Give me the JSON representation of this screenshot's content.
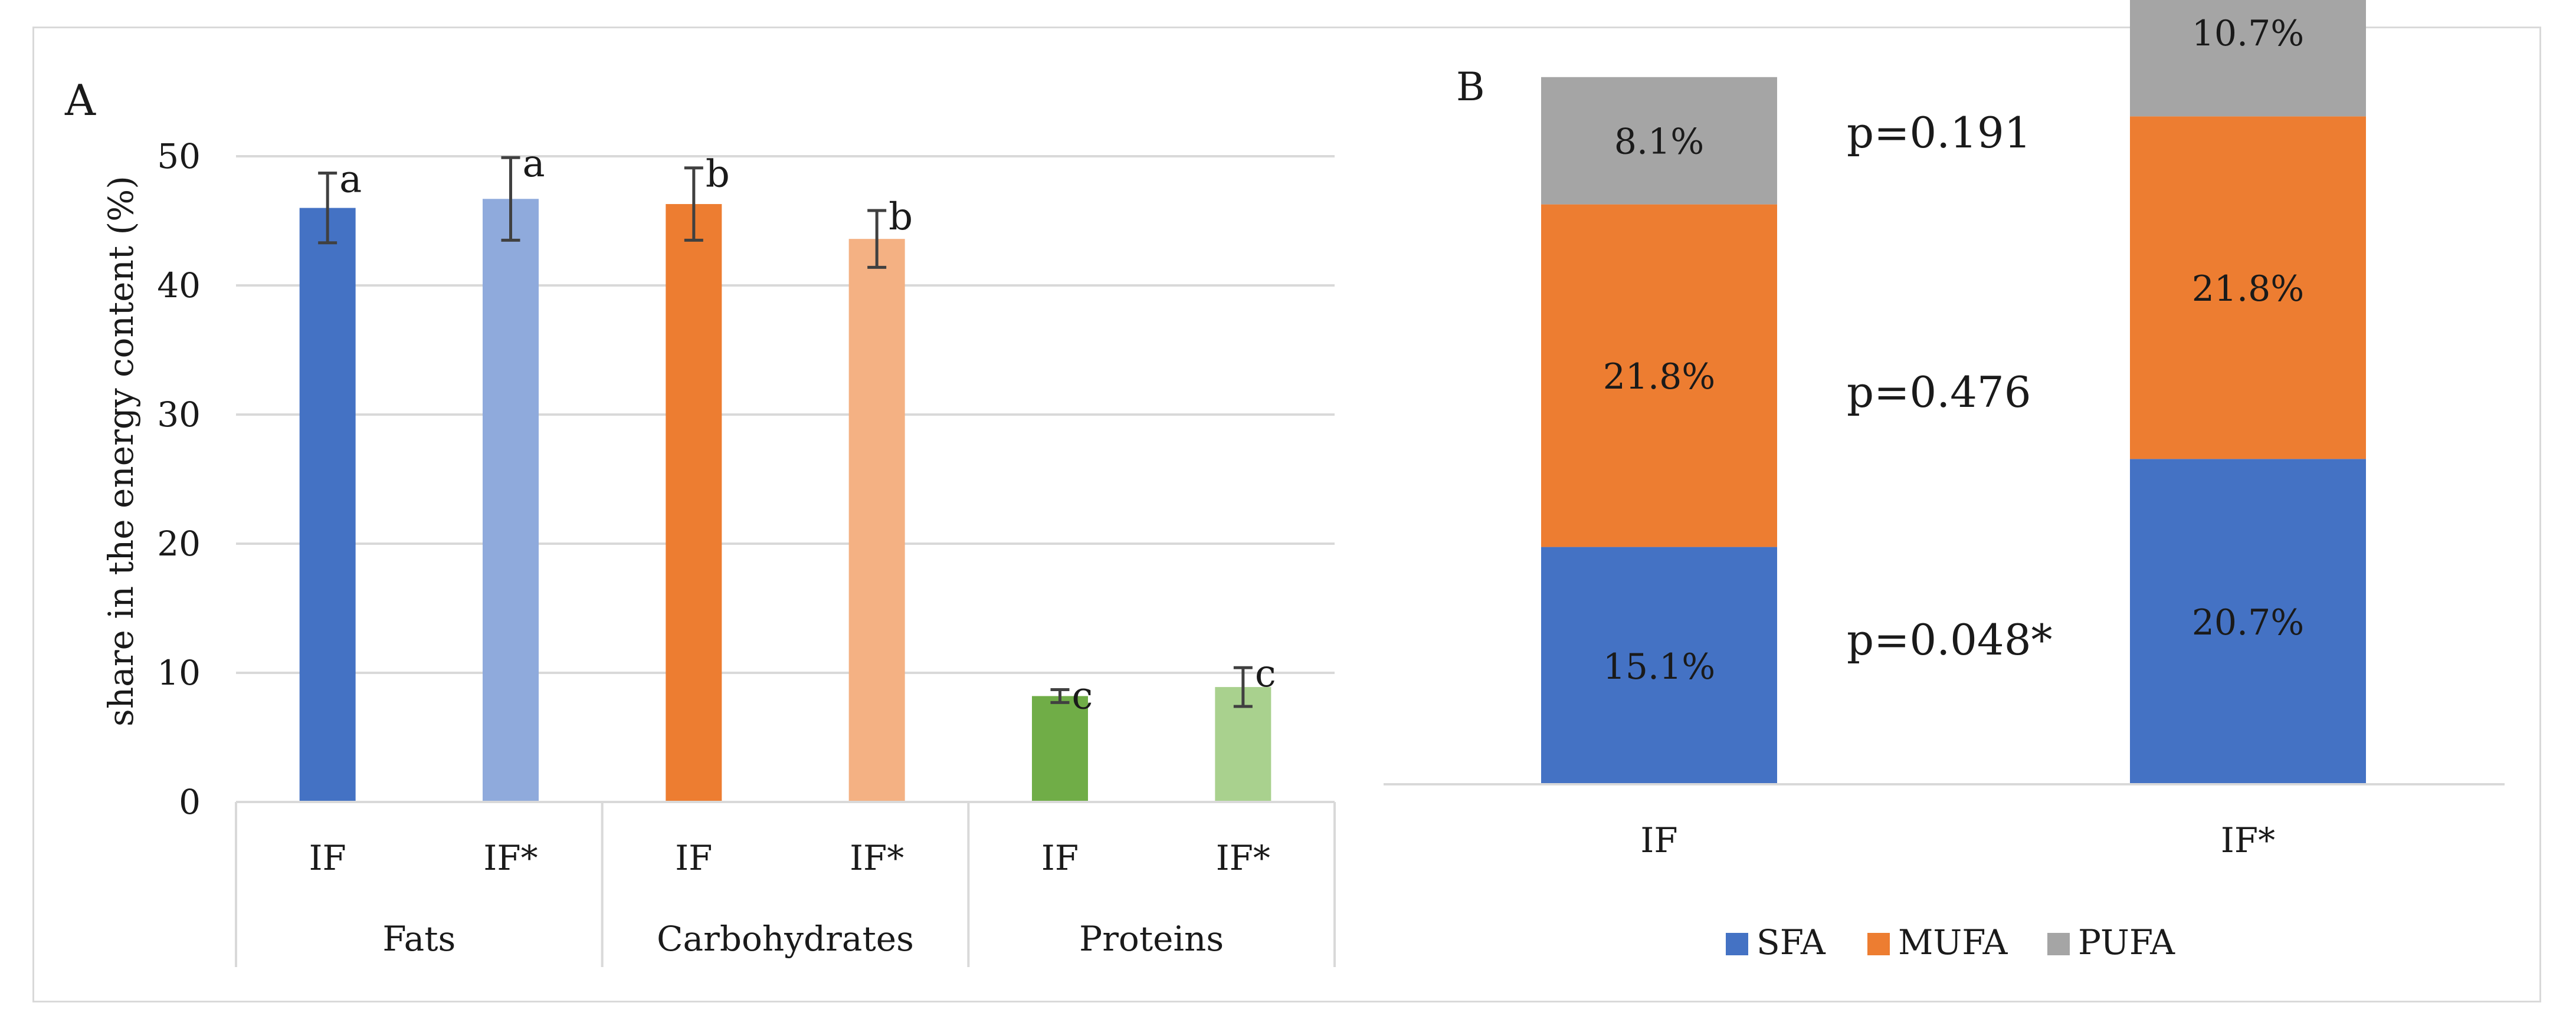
{
  "chart_data": [
    {
      "panel": "A",
      "type": "bar",
      "ylabel": "share in the energy content (%)",
      "ylim": [
        0,
        50
      ],
      "yticks": [
        0,
        10,
        20,
        30,
        40,
        50
      ],
      "grid": true,
      "groups": [
        "Fats",
        "Carbohydrates",
        "Proteins"
      ],
      "bars": [
        {
          "group": "Fats",
          "label": "IF",
          "value": 46.0,
          "error": 2.7,
          "letter": "a",
          "color": "#4472c4"
        },
        {
          "group": "Fats",
          "label": "IF*",
          "value": 46.7,
          "error": 3.2,
          "letter": "a",
          "color": "#8faadc"
        },
        {
          "group": "Carbohydrates",
          "label": "IF",
          "value": 46.3,
          "error": 2.8,
          "letter": "b",
          "color": "#ed7d31"
        },
        {
          "group": "Carbohydrates",
          "label": "IF*",
          "value": 43.6,
          "error": 2.2,
          "letter": "b",
          "color": "#f4b183"
        },
        {
          "group": "Proteins",
          "label": "IF",
          "value": 8.2,
          "error": 0.5,
          "letter": "c",
          "color": "#70ad47"
        },
        {
          "group": "Proteins",
          "label": "IF*",
          "value": 8.9,
          "error": 1.5,
          "letter": "c",
          "color": "#a9d18e"
        }
      ]
    },
    {
      "panel": "B",
      "type": "bar",
      "stacked": true,
      "categories": [
        "IF",
        "IF*"
      ],
      "series": [
        {
          "name": "SFA",
          "color": "#4472c4",
          "values": [
            15.1,
            20.7
          ],
          "labels": [
            "15.1%",
            "20.7%"
          ]
        },
        {
          "name": "MUFA",
          "color": "#ed7d31",
          "values": [
            21.8,
            21.8
          ],
          "labels": [
            "21.8%",
            "21.8%"
          ]
        },
        {
          "name": "PUFA",
          "color": "#a5a5a5",
          "values": [
            8.1,
            10.7
          ],
          "labels": [
            "8.1%",
            "10.7%"
          ]
        }
      ],
      "pvalues": [
        "p=0.048*",
        "p=0.476",
        "p=0.191"
      ],
      "legend": "bottom"
    }
  ]
}
